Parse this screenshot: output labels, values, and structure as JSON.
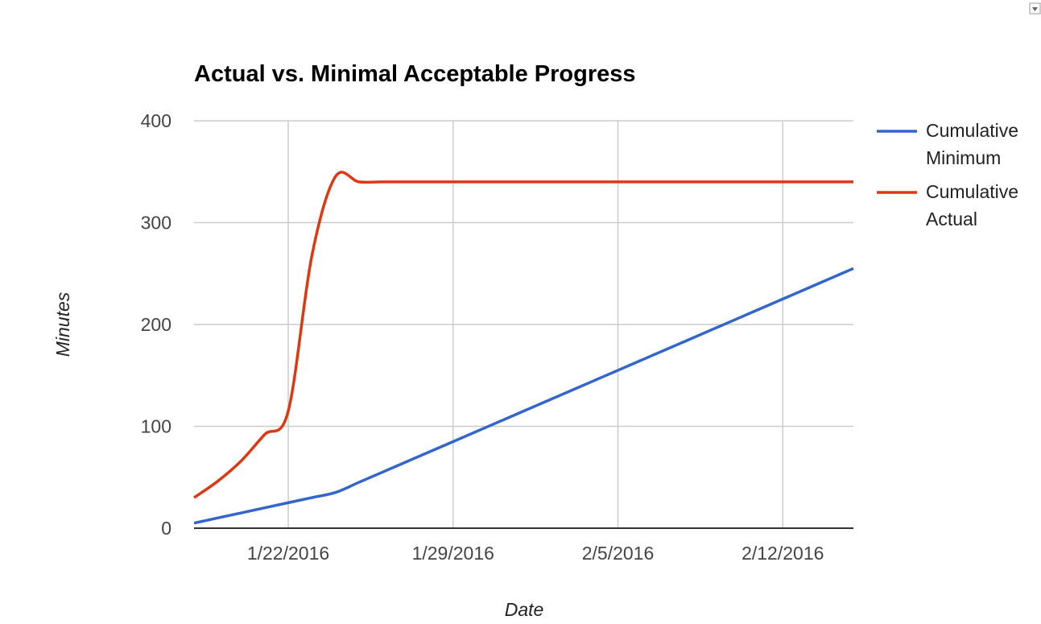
{
  "chart_data": {
    "type": "line",
    "title": "Actual vs. Minimal Acceptable Progress",
    "x_label": "Date",
    "y_label": "Minutes",
    "x": [
      "1/18/2016",
      "1/19/2016",
      "1/20/2016",
      "1/21/2016",
      "1/22/2016",
      "1/23/2016",
      "1/24/2016",
      "1/25/2016",
      "1/26/2016",
      "1/27/2016",
      "1/28/2016",
      "1/29/2016",
      "1/30/2016",
      "1/31/2016",
      "2/1/2016",
      "2/2/2016",
      "2/3/2016",
      "2/4/2016",
      "2/5/2016",
      "2/6/2016",
      "2/7/2016",
      "2/8/2016",
      "2/9/2016",
      "2/10/2016",
      "2/11/2016",
      "2/12/2016",
      "2/13/2016",
      "2/14/2016",
      "2/15/2016"
    ],
    "series": [
      {
        "name": "Cumulative Minimum",
        "color": "#3366cc",
        "values": [
          5,
          10,
          15,
          20,
          25,
          30,
          35,
          45,
          55,
          65,
          75,
          85,
          95,
          105,
          115,
          125,
          135,
          145,
          155,
          165,
          175,
          185,
          195,
          205,
          215,
          225,
          235,
          245,
          255
        ]
      },
      {
        "name": "Cumulative Actual",
        "color": "#dc3912",
        "values": [
          30,
          46,
          66,
          92,
          115,
          267,
          345,
          340,
          340,
          340,
          340,
          340,
          340,
          340,
          340,
          340,
          340,
          340,
          340,
          340,
          340,
          340,
          340,
          340,
          340,
          340,
          340,
          340,
          340
        ]
      }
    ],
    "xlim": [
      "1/18/2016",
      "2/15/2016"
    ],
    "xticks": [
      "1/22/2016",
      "1/29/2016",
      "2/5/2016",
      "2/12/2016"
    ],
    "ylim": [
      0,
      400
    ],
    "yticks": [
      0,
      100,
      200,
      300,
      400
    ],
    "grid": true,
    "legend": "right"
  }
}
